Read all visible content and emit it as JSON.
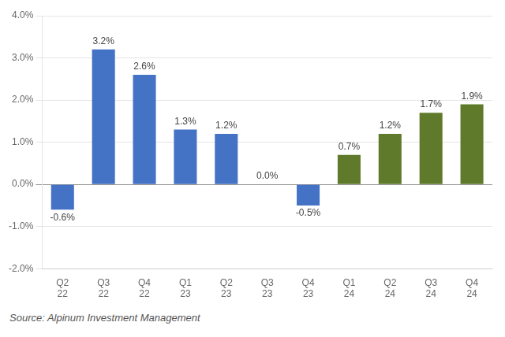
{
  "chart_data": {
    "type": "bar",
    "categories": [
      "Q2\n22",
      "Q3\n22",
      "Q4\n22",
      "Q1\n23",
      "Q2\n23",
      "Q3\n23",
      "Q4\n23",
      "Q1\n24",
      "Q2\n24",
      "Q3\n24",
      "Q4\n24"
    ],
    "values": [
      -0.6,
      3.2,
      2.6,
      1.3,
      1.2,
      0.0,
      -0.5,
      0.7,
      1.2,
      1.7,
      1.9
    ],
    "value_labels": [
      "-0.6%",
      "3.2%",
      "2.6%",
      "1.3%",
      "1.2%",
      "0.0%",
      "-0.5%",
      "0.7%",
      "1.2%",
      "1.7%",
      "1.9%"
    ],
    "colors": [
      "#4472C4",
      "#4472C4",
      "#4472C4",
      "#4472C4",
      "#4472C4",
      "#4472C4",
      "#4472C4",
      "#5F7A2A",
      "#5F7A2A",
      "#5F7A2A",
      "#5F7A2A"
    ],
    "data_labels": true,
    "ylim": [
      -2.0,
      4.0
    ],
    "yticks": [
      {
        "value": -2.0,
        "label": "-2.0%"
      },
      {
        "value": -1.0,
        "label": "-1.0%"
      },
      {
        "value": 0.0,
        "label": "0.0%"
      },
      {
        "value": 1.0,
        "label": "1.0%"
      },
      {
        "value": 2.0,
        "label": "2.0%"
      },
      {
        "value": 3.0,
        "label": "3.0%"
      },
      {
        "value": 4.0,
        "label": "4.0%"
      }
    ],
    "grid": true,
    "annotations": [
      "Source: Alpinum Investment Management"
    ]
  }
}
